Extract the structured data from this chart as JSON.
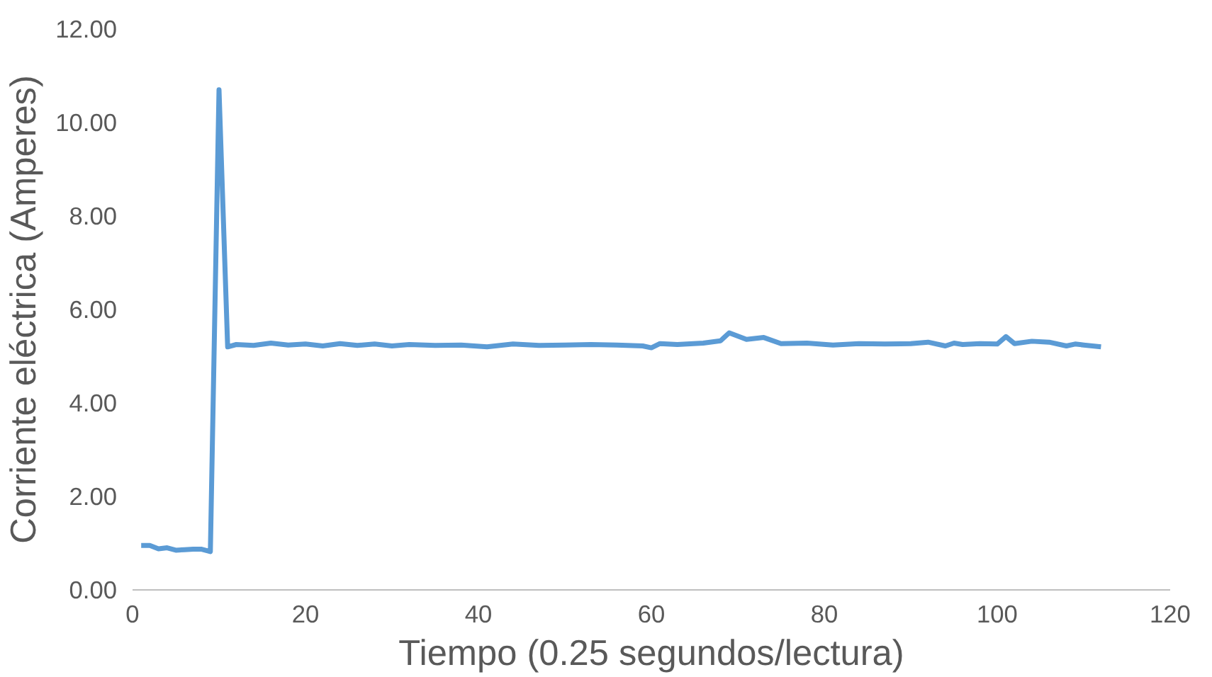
{
  "chart_data": {
    "type": "line",
    "xlabel": "Tiempo (0.25 segundos/lectura)",
    "ylabel": "Corriente eléctrica (Amperes)",
    "xlim": [
      0,
      120
    ],
    "xticks": [
      0,
      20,
      40,
      60,
      80,
      100,
      120
    ],
    "ylim": [
      0,
      12
    ],
    "yticks": [
      {
        "value": 0,
        "label": "0.00"
      },
      {
        "value": 2,
        "label": "2.00"
      },
      {
        "value": 4,
        "label": "4.00"
      },
      {
        "value": 6,
        "label": "6.00"
      },
      {
        "value": 8,
        "label": "8.00"
      },
      {
        "value": 10,
        "label": "10.00"
      },
      {
        "value": 12,
        "label": "12.00"
      }
    ],
    "grid": false,
    "marker": "none",
    "line_style": "solid",
    "series": [
      {
        "color": "#5b9bd5",
        "x": [
          1,
          2,
          3,
          4,
          5,
          6,
          7,
          8,
          9,
          10,
          11,
          12,
          14,
          16,
          18,
          20,
          22,
          24,
          26,
          28,
          30,
          32,
          35,
          38,
          41,
          44,
          47,
          50,
          53,
          56,
          59,
          60,
          61,
          63,
          66,
          68,
          69,
          71,
          73,
          75,
          78,
          81,
          84,
          87,
          90,
          92,
          94,
          95,
          96,
          98,
          100,
          101,
          102,
          104,
          106,
          108,
          109,
          110,
          112
        ],
        "values": [
          0.95,
          0.95,
          0.88,
          0.9,
          0.85,
          0.86,
          0.87,
          0.87,
          0.82,
          10.7,
          5.2,
          5.25,
          5.23,
          5.28,
          5.24,
          5.26,
          5.22,
          5.27,
          5.23,
          5.26,
          5.22,
          5.25,
          5.23,
          5.24,
          5.2,
          5.26,
          5.23,
          5.24,
          5.25,
          5.24,
          5.22,
          5.18,
          5.27,
          5.25,
          5.28,
          5.33,
          5.5,
          5.36,
          5.4,
          5.27,
          5.28,
          5.24,
          5.27,
          5.26,
          5.27,
          5.3,
          5.22,
          5.28,
          5.25,
          5.27,
          5.26,
          5.42,
          5.27,
          5.32,
          5.3,
          5.22,
          5.26,
          5.24,
          5.2
        ]
      }
    ]
  }
}
